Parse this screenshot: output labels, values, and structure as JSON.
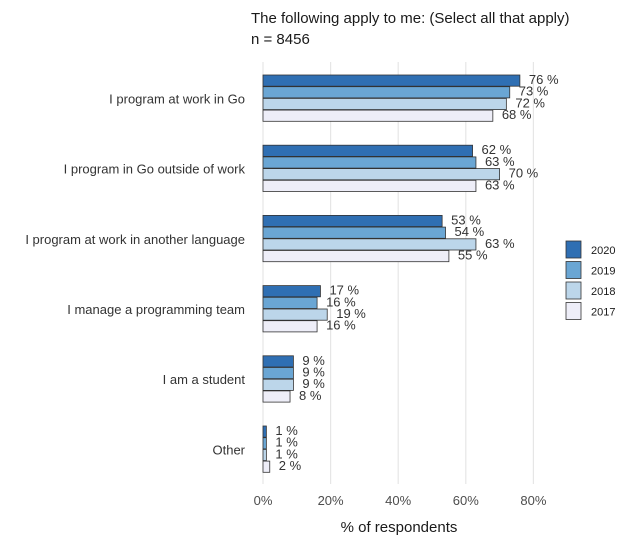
{
  "chart_data": {
    "type": "bar",
    "orientation": "horizontal",
    "title": "The following apply to me: (Select all that apply)",
    "subtitle": "n = 8456",
    "xlabel": "% of respondents",
    "ylabel": "",
    "xlim": [
      0,
      80
    ],
    "x_ticks": [
      0,
      20,
      40,
      60,
      80
    ],
    "x_tick_labels": [
      "0%",
      "20%",
      "40%",
      "60%",
      "80%"
    ],
    "grid": true,
    "legend_position": "right",
    "categories": [
      "I program at work in Go",
      "I program in Go outside of work",
      "I program at work in another language",
      "I manage a programming team",
      "I am a student",
      "Other"
    ],
    "series": [
      {
        "name": "2020",
        "color": "#2f6fb3",
        "values": [
          76,
          62,
          53,
          17,
          9,
          1
        ],
        "labels": [
          "76 %",
          "62 %",
          "53 %",
          "17 %",
          "9 %",
          "1 %"
        ]
      },
      {
        "name": "2019",
        "color": "#6aa6d4",
        "values": [
          73,
          63,
          54,
          16,
          9,
          1
        ],
        "labels": [
          "73 %",
          "63 %",
          "54 %",
          "16 %",
          "9 %",
          "1 %"
        ]
      },
      {
        "name": "2018",
        "color": "#bcd6ea",
        "values": [
          72,
          70,
          63,
          19,
          9,
          1
        ],
        "labels": [
          "72 %",
          "70 %",
          "63 %",
          "19 %",
          "9 %",
          "1 %"
        ]
      },
      {
        "name": "2017",
        "color": "#eeeef8",
        "values": [
          68,
          63,
          55,
          16,
          8,
          2
        ],
        "labels": [
          "68 %",
          "63 %",
          "55 %",
          "16 %",
          "8 %",
          "2 %"
        ]
      }
    ]
  }
}
